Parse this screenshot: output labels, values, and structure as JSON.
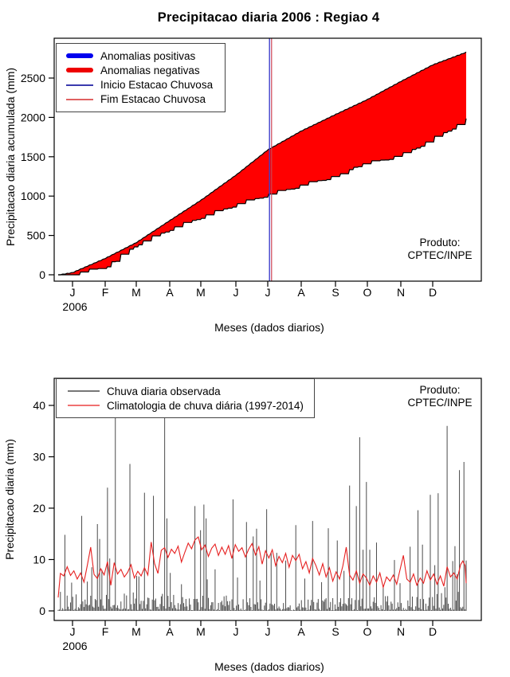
{
  "figure": {
    "produto": {
      "line1": "Produto:",
      "line2": "CPTEC/INPE"
    }
  },
  "chart_data": [
    {
      "type": "area",
      "title": "Precipitacao diaria 2006 : Regiao 4",
      "xlabel": "Meses (dados diarios)",
      "ylabel": "Precipitacao diaria acumulada (mm)",
      "x_tick_labels": [
        "J",
        "F",
        "M",
        "A",
        "M",
        "J",
        "J",
        "A",
        "S",
        "O",
        "N",
        "D"
      ],
      "x_year_label": "2006",
      "y_ticks": [
        0,
        500,
        1000,
        1500,
        2000,
        2500
      ],
      "ylim": [
        0,
        2900
      ],
      "grid": false,
      "legend_position": "top-left",
      "legend": {
        "items": [
          {
            "label": "Anomalias positivas",
            "color": "#0000ee",
            "style": "thick"
          },
          {
            "label": "Anomalias negativas",
            "color": "#ee0000",
            "style": "thick"
          },
          {
            "label": "Inicio Estacao Chuvosa",
            "color": "#3a3aae",
            "style": "thin"
          },
          {
            "label": "Fim Estacao Chuvosa",
            "color": "#e06060",
            "style": "thin"
          }
        ]
      },
      "annotation": {
        "line1": "Produto:",
        "line2": "CPTEC/INPE"
      },
      "rainy_season_start_frac": 0.518,
      "rainy_season_end_frac": 0.523,
      "fill_between_color": "#ff0000",
      "series": [
        {
          "name": "climatologia_acumulada_mm",
          "points": [
            [
              0,
              0
            ],
            [
              0.035,
              30
            ],
            [
              0.115,
              210
            ],
            [
              0.191,
              410
            ],
            [
              0.273,
              690
            ],
            [
              0.35,
              950
            ],
            [
              0.436,
              1270
            ],
            [
              0.514,
              1590
            ],
            [
              0.596,
              1830
            ],
            [
              0.68,
              2040
            ],
            [
              0.758,
              2230
            ],
            [
              0.84,
              2460
            ],
            [
              0.918,
              2670
            ],
            [
              1.0,
              2830
            ]
          ]
        },
        {
          "name": "observada_acumulada_mm",
          "points": [
            [
              0,
              0
            ],
            [
              0.035,
              25
            ],
            [
              0.115,
              115
            ],
            [
              0.191,
              400
            ],
            [
              0.273,
              596
            ],
            [
              0.35,
              750
            ],
            [
              0.436,
              910
            ],
            [
              0.514,
              1035
            ],
            [
              0.596,
              1155
            ],
            [
              0.68,
              1275
            ],
            [
              0.705,
              1295
            ],
            [
              0.72,
              1390
            ],
            [
              0.758,
              1435
            ],
            [
              0.84,
              1535
            ],
            [
              0.918,
              1745
            ],
            [
              1.0,
              1985
            ]
          ]
        }
      ]
    },
    {
      "type": "bar+line",
      "title": "",
      "xlabel": "Meses (dados diarios)",
      "ylabel": "Precipitacao diaria (mm)",
      "x_tick_labels": [
        "J",
        "F",
        "M",
        "A",
        "M",
        "J",
        "J",
        "A",
        "S",
        "O",
        "N",
        "D"
      ],
      "x_year_label": "2006",
      "y_ticks": [
        0,
        10,
        20,
        30,
        40
      ],
      "ylim": [
        0,
        45
      ],
      "grid": false,
      "legend_position": "top-left",
      "legend": {
        "items": [
          {
            "label": "Chuva diaria observada",
            "color": "#777777",
            "style": "thin"
          },
          {
            "label": "Climatologia de chuva diária (1997-2014)",
            "color": "#f07070",
            "style": "thin"
          }
        ]
      },
      "annotation": {
        "line1": "Produto:",
        "line2": "CPTEC/INPE"
      },
      "bar_color": "#4b4b4b",
      "line_color": "#e62020",
      "observed_spikes_day_mm": [
        [
          6,
          14.8
        ],
        [
          12,
          5.5
        ],
        [
          21,
          18.5
        ],
        [
          30,
          8.5
        ],
        [
          35,
          16.9
        ],
        [
          37,
          14.0
        ],
        [
          44,
          24.0
        ],
        [
          46,
          10.2
        ],
        [
          51,
          44.0
        ],
        [
          64,
          28.6
        ],
        [
          70,
          6.8
        ],
        [
          77,
          23.0
        ],
        [
          85,
          22.4
        ],
        [
          95,
          44.0
        ],
        [
          97,
          18.0
        ],
        [
          100,
          7.4
        ],
        [
          110,
          5.2
        ],
        [
          122,
          20.4
        ],
        [
          127,
          15.7
        ],
        [
          130,
          20.7
        ],
        [
          132,
          18.0
        ],
        [
          140,
          8.1
        ],
        [
          156,
          21.7
        ],
        [
          160,
          6.5
        ],
        [
          168,
          17.3
        ],
        [
          174,
          14.5
        ],
        [
          177,
          16.0
        ],
        [
          180,
          5.9
        ],
        [
          186,
          19.8
        ],
        [
          190,
          11.3
        ],
        [
          195,
          11.3
        ],
        [
          203,
          9.8
        ],
        [
          212,
          16.7
        ],
        [
          220,
          6.3
        ],
        [
          227,
          17.5
        ],
        [
          235,
          5.6
        ],
        [
          241,
          16.1
        ],
        [
          249,
          13.7
        ],
        [
          255,
          7.8
        ],
        [
          260,
          24.4
        ],
        [
          266,
          20.4
        ],
        [
          269,
          33.8
        ],
        [
          272,
          11.9
        ],
        [
          275,
          25.1
        ],
        [
          278,
          11.9
        ],
        [
          284,
          13.3
        ],
        [
          290,
          4.8
        ],
        [
          300,
          9.9
        ],
        [
          305,
          5.4
        ],
        [
          314,
          12.5
        ],
        [
          321,
          19.6
        ],
        [
          325,
          12.9
        ],
        [
          332,
          22.6
        ],
        [
          336,
          8.9
        ],
        [
          339,
          22.9
        ],
        [
          345,
          4.6
        ],
        [
          347,
          36.0
        ],
        [
          352,
          9.7
        ],
        [
          354,
          12.6
        ],
        [
          358,
          27.4
        ],
        [
          362,
          29.0
        ],
        [
          364,
          9.8
        ]
      ],
      "climatology_line_day_mm": [
        [
          0,
          2.6
        ],
        [
          2,
          7.3
        ],
        [
          5,
          6.8
        ],
        [
          8,
          8.6
        ],
        [
          11,
          6.9
        ],
        [
          14,
          7.8
        ],
        [
          17,
          6.2
        ],
        [
          20,
          7.4
        ],
        [
          23,
          5.6
        ],
        [
          26,
          8.9
        ],
        [
          29,
          12.4
        ],
        [
          32,
          7.1
        ],
        [
          35,
          6.3
        ],
        [
          38,
          8.2
        ],
        [
          41,
          7.0
        ],
        [
          44,
          9.6
        ],
        [
          47,
          5.0
        ],
        [
          50,
          9.4
        ],
        [
          53,
          7.2
        ],
        [
          56,
          8.1
        ],
        [
          59,
          6.6
        ],
        [
          62,
          7.5
        ],
        [
          65,
          9.0
        ],
        [
          68,
          6.4
        ],
        [
          71,
          7.7
        ],
        [
          74,
          6.8
        ],
        [
          77,
          8.4
        ],
        [
          80,
          7.0
        ],
        [
          83,
          13.4
        ],
        [
          86,
          9.2
        ],
        [
          89,
          7.3
        ],
        [
          92,
          11.8
        ],
        [
          95,
          12.3
        ],
        [
          98,
          10.4
        ],
        [
          101,
          12.0
        ],
        [
          104,
          11.2
        ],
        [
          107,
          12.6
        ],
        [
          110,
          9.5
        ],
        [
          113,
          11.4
        ],
        [
          116,
          13.2
        ],
        [
          119,
          12.1
        ],
        [
          122,
          13.8
        ],
        [
          125,
          14.4
        ],
        [
          128,
          11.9
        ],
        [
          131,
          12.8
        ],
        [
          134,
          10.6
        ],
        [
          137,
          12.2
        ],
        [
          140,
          13.0
        ],
        [
          143,
          10.8
        ],
        [
          146,
          12.4
        ],
        [
          149,
          11.0
        ],
        [
          152,
          12.7
        ],
        [
          155,
          10.2
        ],
        [
          158,
          12.9
        ],
        [
          161,
          11.6
        ],
        [
          164,
          12.3
        ],
        [
          167,
          10.5
        ],
        [
          170,
          12.0
        ],
        [
          173,
          13.1
        ],
        [
          176,
          10.9
        ],
        [
          179,
          12.5
        ],
        [
          182,
          9.1
        ],
        [
          185,
          11.7
        ],
        [
          188,
          10.3
        ],
        [
          191,
          11.9
        ],
        [
          194,
          8.8
        ],
        [
          197,
          10.6
        ],
        [
          200,
          9.4
        ],
        [
          203,
          11.2
        ],
        [
          206,
          8.5
        ],
        [
          209,
          10.8
        ],
        [
          212,
          9.8
        ],
        [
          215,
          11.0
        ],
        [
          218,
          8.2
        ],
        [
          221,
          9.6
        ],
        [
          224,
          7.4
        ],
        [
          227,
          10.2
        ],
        [
          230,
          8.8
        ],
        [
          233,
          7.0
        ],
        [
          236,
          9.2
        ],
        [
          239,
          6.6
        ],
        [
          242,
          8.4
        ],
        [
          245,
          5.8
        ],
        [
          248,
          7.6
        ],
        [
          251,
          6.2
        ],
        [
          254,
          8.8
        ],
        [
          257,
          12.4
        ],
        [
          260,
          7.0
        ],
        [
          263,
          6.0
        ],
        [
          266,
          7.8
        ],
        [
          269,
          5.4
        ],
        [
          272,
          7.2
        ],
        [
          275,
          6.4
        ],
        [
          278,
          5.0
        ],
        [
          281,
          6.8
        ],
        [
          284,
          5.6
        ],
        [
          287,
          7.4
        ],
        [
          290,
          4.6
        ],
        [
          293,
          6.6
        ],
        [
          296,
          5.8
        ],
        [
          299,
          7.0
        ],
        [
          302,
          5.2
        ],
        [
          305,
          8.0
        ],
        [
          308,
          10.8
        ],
        [
          311,
          6.2
        ],
        [
          314,
          5.6
        ],
        [
          317,
          7.2
        ],
        [
          320,
          5.0
        ],
        [
          323,
          6.4
        ],
        [
          326,
          5.4
        ],
        [
          329,
          7.8
        ],
        [
          332,
          6.0
        ],
        [
          335,
          7.2
        ],
        [
          338,
          5.2
        ],
        [
          341,
          6.8
        ],
        [
          344,
          4.8
        ],
        [
          347,
          8.6
        ],
        [
          350,
          6.6
        ],
        [
          353,
          7.4
        ],
        [
          356,
          6.2
        ],
        [
          359,
          9.0
        ],
        [
          361,
          9.7
        ],
        [
          363,
          8.8
        ],
        [
          364,
          5.4
        ]
      ],
      "background_bars": {
        "seed": 20061,
        "note": "dense small daily totals ~0-4 mm, values not legible at pixel scale"
      }
    }
  ]
}
